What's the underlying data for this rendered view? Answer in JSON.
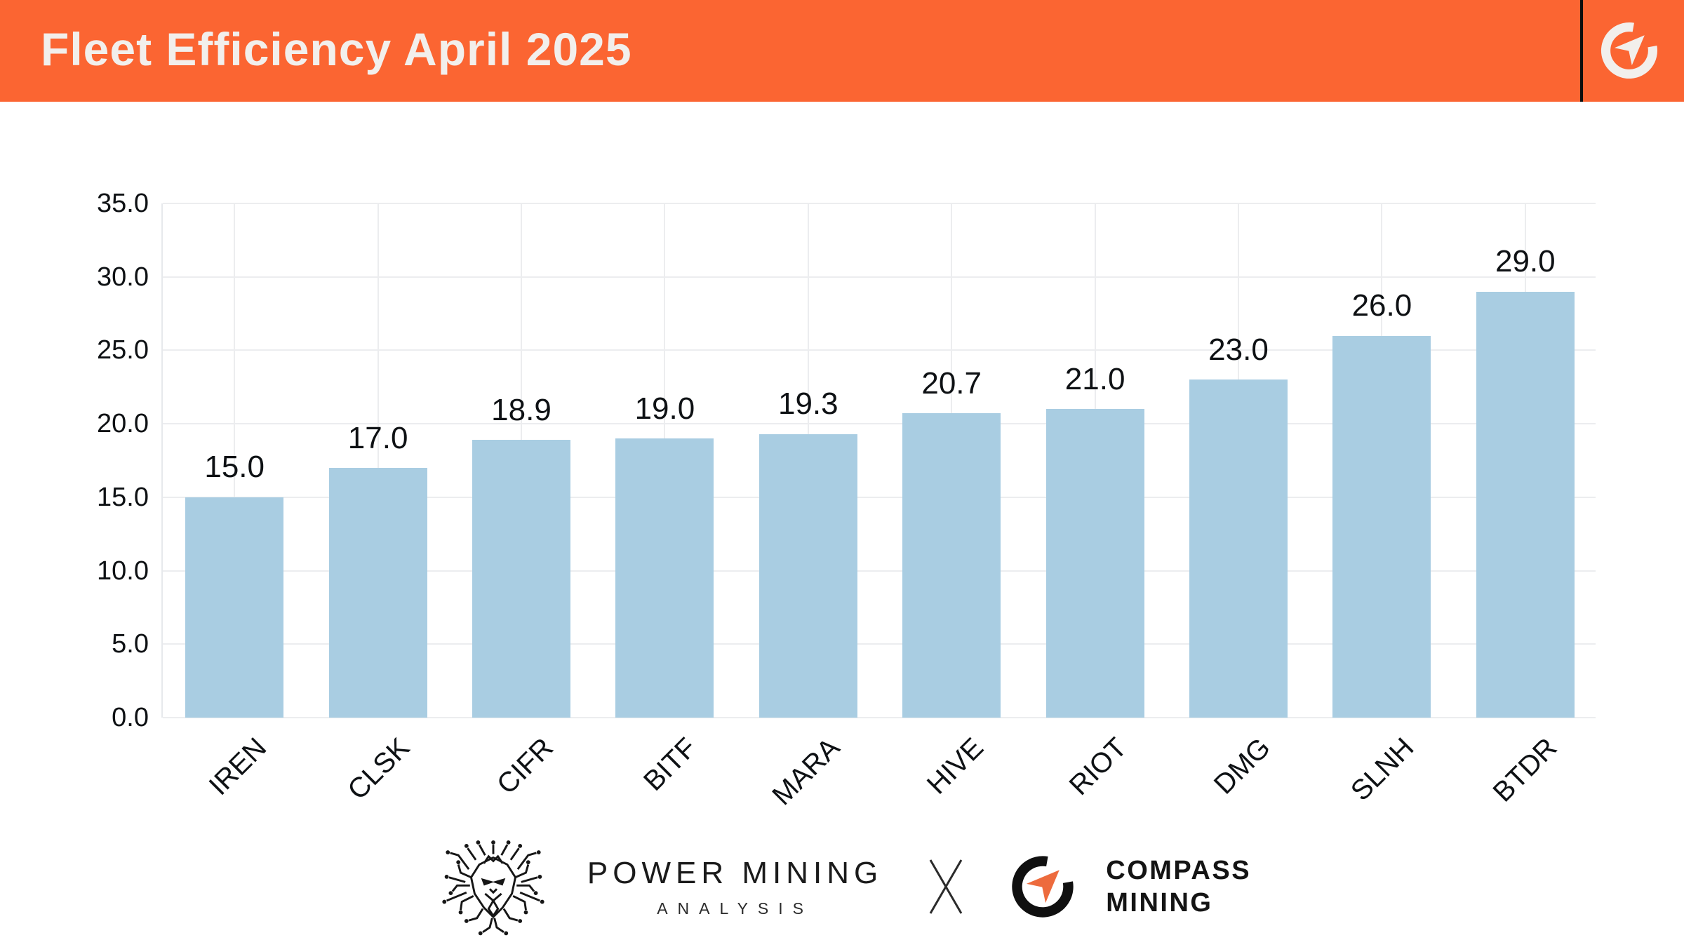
{
  "header": {
    "title": "Fleet Efficiency April 2025",
    "accent_color": "#FB6532"
  },
  "chart_data": {
    "type": "bar",
    "categories": [
      "IREN",
      "CLSK",
      "CIFR",
      "BITF",
      "MARA",
      "HIVE",
      "RIOT",
      "DMG",
      "SLNH",
      "BTDR"
    ],
    "values": [
      15.0,
      17.0,
      18.9,
      19.0,
      19.3,
      20.7,
      21.0,
      23.0,
      26.0,
      29.0
    ],
    "value_labels": [
      "15.0",
      "17.0",
      "18.9",
      "19.0",
      "19.3",
      "20.7",
      "21.0",
      "23.0",
      "26.0",
      "29.0"
    ],
    "title": "Fleet Efficiency April 2025",
    "xlabel": "",
    "ylabel": "",
    "ylim": [
      0,
      35
    ],
    "ytick_step": 5,
    "ytick_labels": [
      "0.0",
      "5.0",
      "10.0",
      "15.0",
      "20.0",
      "25.0",
      "30.0",
      "35.0"
    ],
    "grid": true,
    "legend": false,
    "bar_color": "#A9CDE2",
    "grid_color": "#ECEDEF",
    "label_color": "#0E1114",
    "x_tick_rotation_deg": 45
  },
  "footer": {
    "power_mining": {
      "line1": "POWER MINING",
      "line2": "ANALYSIS"
    },
    "separator": "X",
    "compass_mining": {
      "line1": "COMPASS",
      "line2": "MINING"
    },
    "compass_arrow_color": "#ED6B3D"
  }
}
